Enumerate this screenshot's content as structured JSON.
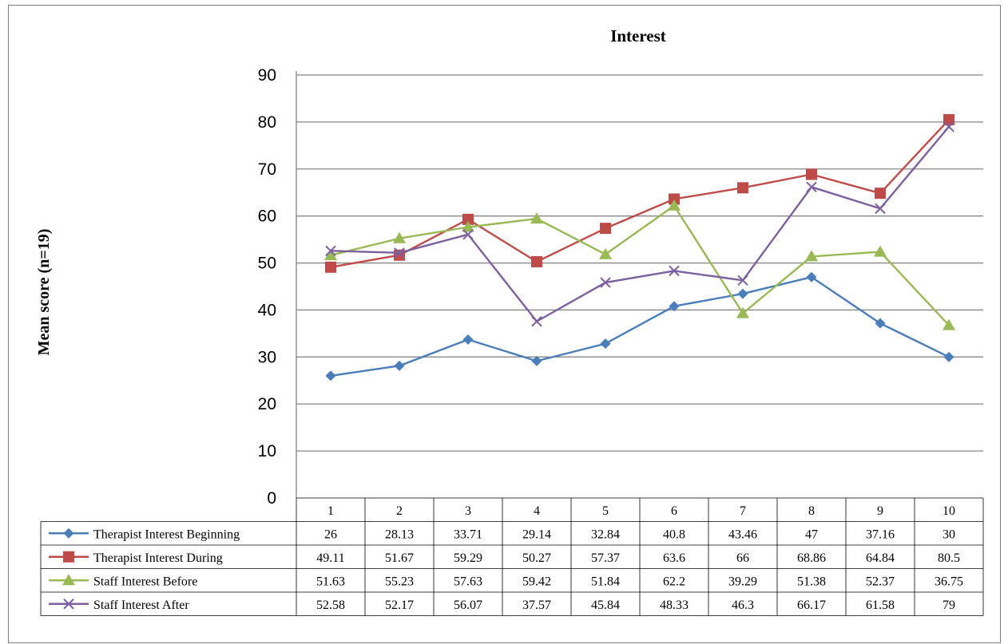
{
  "chart_data": {
    "type": "line",
    "title": "Interest",
    "ylabel": "Mean score (n=19)",
    "xlabel": "",
    "ylim": [
      0,
      90
    ],
    "yticks": [
      0,
      10,
      20,
      30,
      40,
      50,
      60,
      70,
      80,
      90
    ],
    "categories": [
      "1",
      "2",
      "3",
      "4",
      "5",
      "6",
      "7",
      "8",
      "9",
      "10"
    ],
    "grid": true,
    "legend": "data-table",
    "series": [
      {
        "name": "Therapist Interest Beginning",
        "color": "#4a7ebb",
        "marker": "diamond",
        "values": [
          26,
          28.13,
          33.71,
          29.14,
          32.84,
          40.8,
          43.46,
          47,
          37.16,
          30
        ],
        "labels": [
          "26",
          "28.13",
          "33.71",
          "29.14",
          "32.84",
          "40.8",
          "43.46",
          "47",
          "37.16",
          "30"
        ]
      },
      {
        "name": "Therapist Interest During",
        "color": "#be4b48",
        "marker": "square",
        "values": [
          49.11,
          51.67,
          59.29,
          50.27,
          57.37,
          63.6,
          66,
          68.86,
          64.84,
          80.5
        ],
        "labels": [
          "49.11",
          "51.67",
          "59.29",
          "50.27",
          "57.37",
          "63.6",
          "66",
          "68.86",
          "64.84",
          "80.5"
        ]
      },
      {
        "name": "Staff Interest Before",
        "color": "#98b954",
        "marker": "triangle",
        "values": [
          51.63,
          55.23,
          57.63,
          59.42,
          51.84,
          62.2,
          39.29,
          51.38,
          52.37,
          36.75
        ],
        "labels": [
          "51.63",
          "55.23",
          "57.63",
          "59.42",
          "51.84",
          "62.2",
          "39.29",
          "51.38",
          "52.37",
          "36.75"
        ]
      },
      {
        "name": "Staff Interest After",
        "color": "#7d60a0",
        "marker": "x",
        "values": [
          52.58,
          52.17,
          56.07,
          37.57,
          45.84,
          48.33,
          46.3,
          66.17,
          61.58,
          79
        ],
        "labels": [
          "52.58",
          "52.17",
          "56.07",
          "37.57",
          "45.84",
          "48.33",
          "46.3",
          "66.17",
          "61.58",
          "79"
        ]
      }
    ]
  }
}
